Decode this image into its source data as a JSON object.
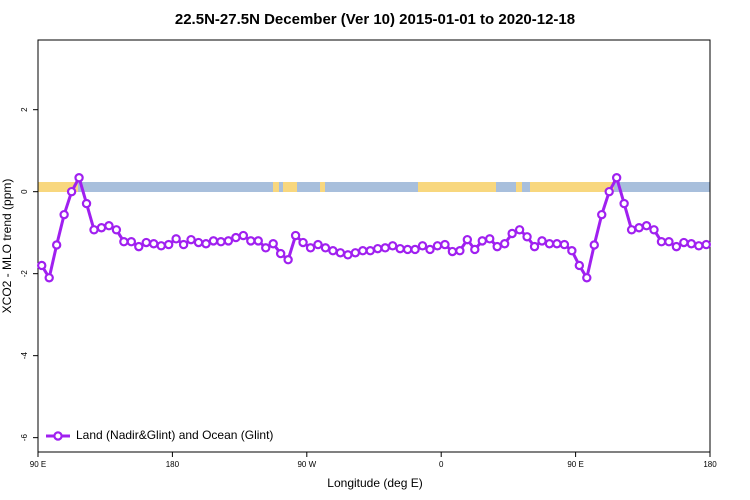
{
  "chart_data": {
    "type": "line",
    "title": "22.5N-27.5N December (Ver 10)   2015-01-01 to 2020-12-18",
    "xlabel": "Longitude (deg E)",
    "ylabel": "XCO2 - MLO trend (ppm)",
    "x": [
      92.5,
      97.5,
      102.5,
      107.5,
      112.5,
      117.5,
      122.5,
      127.5,
      132.5,
      137.5,
      142.5,
      147.5,
      152.5,
      157.5,
      162.5,
      167.5,
      172.5,
      177.5,
      182.5,
      187.5,
      192.5,
      197.5,
      202.5,
      207.5,
      212.5,
      217.5,
      222.5,
      227.5,
      232.5,
      237.5,
      242.5,
      247.5,
      252.5,
      257.5,
      262.5,
      267.5,
      272.5,
      277.5,
      282.5,
      287.5,
      292.5,
      297.5,
      302.5,
      307.5,
      312.5,
      317.5,
      322.5,
      327.5,
      332.5,
      337.5,
      342.5,
      347.5,
      352.5,
      357.5,
      362.5,
      367.5,
      372.5,
      377.5,
      382.5,
      387.5,
      392.5,
      397.5,
      402.5,
      407.5,
      412.5,
      417.5,
      422.5,
      427.5,
      432.5,
      437.5,
      442.5,
      447.5,
      452.5,
      457.5,
      462.5,
      467.5,
      472.5,
      477.5,
      482.5,
      487.5,
      492.5,
      497.5,
      502.5,
      507.5,
      512.5,
      517.5,
      522.5,
      527.5,
      532.5,
      537.5
    ],
    "series": [
      {
        "name": "Land (Nadir&Glint) and Ocean (Glint)",
        "color": "#a020f0",
        "values": [
          -1.8,
          -2.1,
          -1.3,
          -0.56,
          0.0,
          0.34,
          -0.29,
          -0.93,
          -0.88,
          -0.83,
          -0.93,
          -1.22,
          -1.22,
          -1.34,
          -1.24,
          -1.27,
          -1.32,
          -1.29,
          -1.15,
          -1.29,
          -1.17,
          -1.24,
          -1.27,
          -1.2,
          -1.22,
          -1.2,
          -1.12,
          -1.07,
          -1.2,
          -1.2,
          -1.37,
          -1.27,
          -1.51,
          -1.66,
          -1.07,
          -1.24,
          -1.37,
          -1.29,
          -1.37,
          -1.44,
          -1.49,
          -1.54,
          -1.49,
          -1.44,
          -1.44,
          -1.39,
          -1.37,
          -1.32,
          -1.39,
          -1.41,
          -1.41,
          -1.32,
          -1.41,
          -1.32,
          -1.29,
          -1.46,
          -1.44,
          -1.17,
          -1.41,
          -1.2,
          -1.15,
          -1.34,
          -1.27,
          -1.02,
          -0.93,
          -1.1,
          -1.34,
          -1.2,
          -1.27,
          -1.27,
          -1.29,
          -1.44,
          -1.8,
          -2.1,
          -1.3,
          -0.56,
          0.0,
          0.34,
          -0.29,
          -0.93,
          -0.88,
          -0.83,
          -0.93,
          -1.22,
          -1.22,
          -1.34,
          -1.24,
          -1.27,
          -1.32,
          -1.29
        ]
      }
    ],
    "xlim": [
      90,
      540
    ],
    "ylim": [
      -6.35,
      3.7
    ],
    "xticks": [
      {
        "value": 90,
        "label": "90 E"
      },
      180,
      {
        "value": 270,
        "label": "90 W"
      },
      {
        "value": 360,
        "label": "0"
      },
      {
        "value": 450,
        "label": "90 E"
      },
      {
        "value": 540,
        "label": "180"
      }
    ],
    "yticks": [
      -6,
      -4,
      -2,
      0,
      2
    ],
    "legend": "lower left"
  }
}
